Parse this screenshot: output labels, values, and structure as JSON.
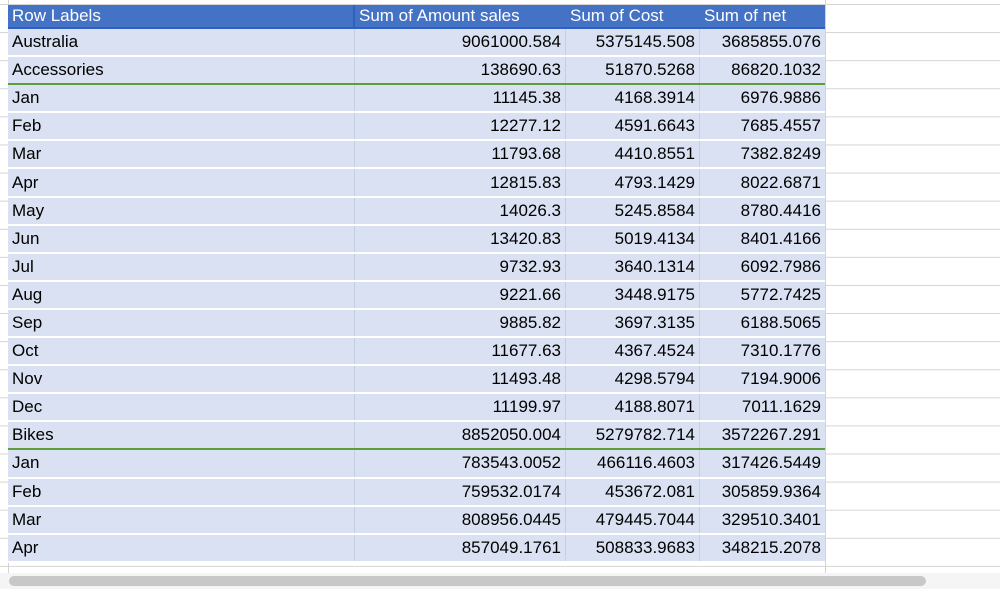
{
  "headers": [
    "Row Labels",
    "Sum of Amount sales",
    "Sum of Cost",
    "Sum of net"
  ],
  "rows": [
    {
      "label": "Australia",
      "sales": "9061000.584",
      "cost": "5375145.508",
      "net": "3685855.076",
      "type": "region"
    },
    {
      "label": "Accessories",
      "sales": "138690.63",
      "cost": "51870.5268",
      "net": "86820.1032",
      "type": "group"
    },
    {
      "label": "Jan",
      "sales": "11145.38",
      "cost": "4168.3914",
      "net": "6976.9886"
    },
    {
      "label": "Feb",
      "sales": "12277.12",
      "cost": "4591.6643",
      "net": "7685.4557"
    },
    {
      "label": "Mar",
      "sales": "11793.68",
      "cost": "4410.8551",
      "net": "7382.8249"
    },
    {
      "label": "Apr",
      "sales": "12815.83",
      "cost": "4793.1429",
      "net": "8022.6871"
    },
    {
      "label": "May",
      "sales": "14026.3",
      "cost": "5245.8584",
      "net": "8780.4416"
    },
    {
      "label": "Jun",
      "sales": "13420.83",
      "cost": "5019.4134",
      "net": "8401.4166"
    },
    {
      "label": "Jul",
      "sales": "9732.93",
      "cost": "3640.1314",
      "net": "6092.7986"
    },
    {
      "label": "Aug",
      "sales": "9221.66",
      "cost": "3448.9175",
      "net": "5772.7425"
    },
    {
      "label": "Sep",
      "sales": "9885.82",
      "cost": "3697.3135",
      "net": "6188.5065"
    },
    {
      "label": "Oct",
      "sales": "11677.63",
      "cost": "4367.4524",
      "net": "7310.1776"
    },
    {
      "label": "Nov",
      "sales": "11493.48",
      "cost": "4298.5794",
      "net": "7194.9006"
    },
    {
      "label": "Dec",
      "sales": "11199.97",
      "cost": "4188.8071",
      "net": "7011.1629"
    },
    {
      "label": "Bikes",
      "sales": "8852050.004",
      "cost": "5279782.714",
      "net": "3572267.291",
      "type": "group"
    },
    {
      "label": "Jan",
      "sales": "783543.0052",
      "cost": "466116.4603",
      "net": "317426.5449"
    },
    {
      "label": "Feb",
      "sales": "759532.0174",
      "cost": "453672.081",
      "net": "305859.9364"
    },
    {
      "label": "Mar",
      "sales": "808956.0445",
      "cost": "479445.7044",
      "net": "329510.3401"
    },
    {
      "label": "Apr",
      "sales": "857049.1761",
      "cost": "508833.9683",
      "net": "348215.2078"
    }
  ]
}
